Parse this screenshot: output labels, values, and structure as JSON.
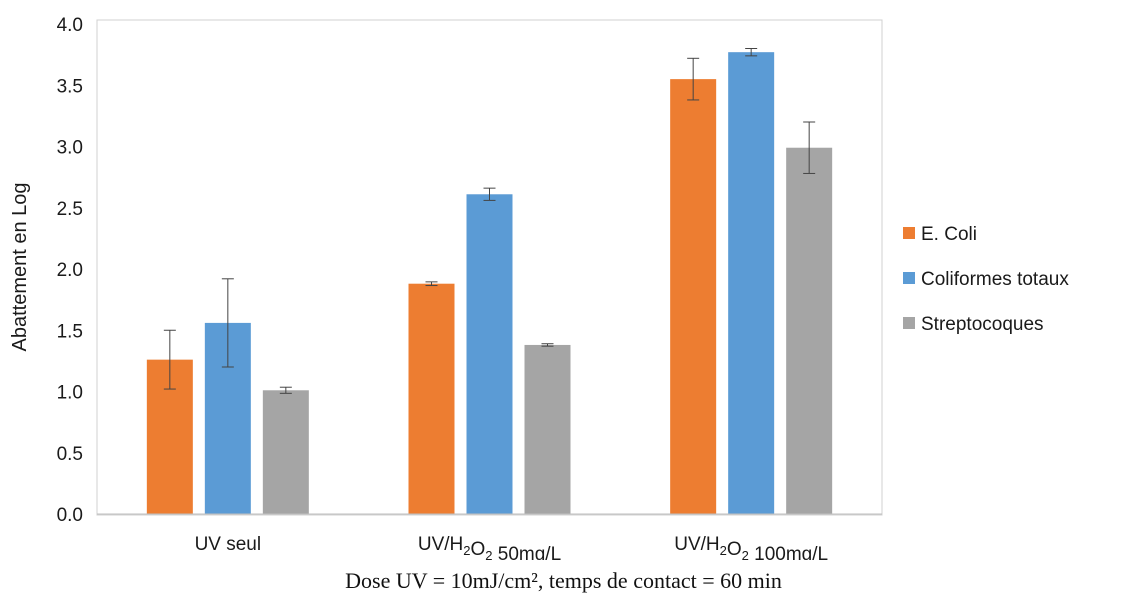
{
  "chart_data": {
    "type": "bar",
    "categories": [
      {
        "parts": [
          {
            "t": "UV seul"
          }
        ]
      },
      {
        "parts": [
          {
            "t": "UV/H"
          },
          {
            "t": "2",
            "sub": true
          },
          {
            "t": "O"
          },
          {
            "t": "2",
            "sub": true
          },
          {
            "t": " 50mg/L"
          }
        ]
      },
      {
        "parts": [
          {
            "t": "UV/H"
          },
          {
            "t": "2",
            "sub": true
          },
          {
            "t": "O"
          },
          {
            "t": "2",
            "sub": true
          },
          {
            "t": " 100mg/L"
          }
        ]
      }
    ],
    "series": [
      {
        "name": "E. Coli",
        "color": "#ED7D31",
        "values": [
          1.26,
          1.88,
          3.55
        ],
        "errors": [
          0.24,
          0.015,
          0.17
        ]
      },
      {
        "name": "Coliformes totaux",
        "color": "#5B9BD5",
        "values": [
          1.56,
          2.61,
          3.77
        ],
        "errors": [
          0.36,
          0.05,
          0.03
        ]
      },
      {
        "name": "Streptocoques",
        "color": "#A5A5A5",
        "values": [
          1.01,
          1.38,
          2.99
        ],
        "errors": [
          0.025,
          0.01,
          0.21
        ]
      }
    ],
    "ylabel": "Abattement en Log",
    "xlabel": "",
    "ylim": [
      0,
      4.0
    ],
    "yticks": [
      "0.0",
      "0.5",
      "1.0",
      "1.5",
      "2.0",
      "2.5",
      "3.0",
      "3.5",
      "4.0"
    ],
    "grid": false,
    "legend": "right"
  },
  "caption": "Dose UV = 10mJ/cm², temps de contact = 60 min"
}
